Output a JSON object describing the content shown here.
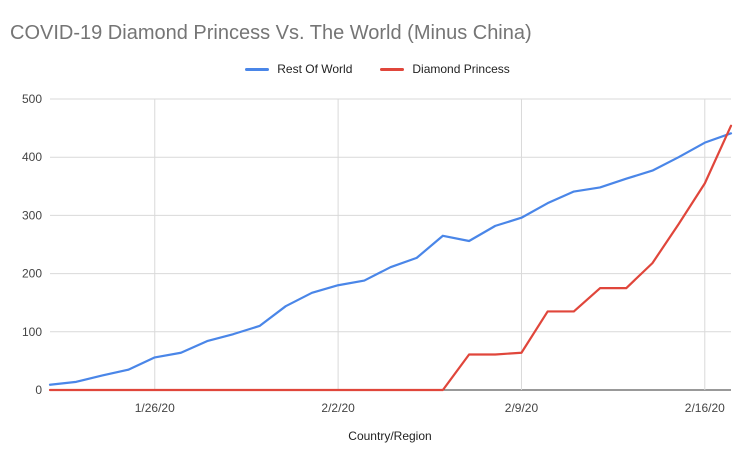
{
  "chart_data": {
    "type": "line",
    "title": "COVID-19 Diamond Princess Vs. The World (Minus China)",
    "xlabel": "Country/Region",
    "ylabel": "",
    "ylim": [
      0,
      500
    ],
    "yticks": [
      0,
      100,
      200,
      300,
      400,
      500
    ],
    "x": [
      "1/22/20",
      "1/23/20",
      "1/24/20",
      "1/25/20",
      "1/26/20",
      "1/27/20",
      "1/28/20",
      "1/29/20",
      "1/30/20",
      "1/31/20",
      "2/1/20",
      "2/2/20",
      "2/3/20",
      "2/4/20",
      "2/5/20",
      "2/6/20",
      "2/7/20",
      "2/8/20",
      "2/9/20",
      "2/10/20",
      "2/11/20",
      "2/12/20",
      "2/13/20",
      "2/14/20",
      "2/15/20",
      "2/16/20",
      "2/17/20"
    ],
    "xtick_labels": [
      "1/26/20",
      "2/2/20",
      "2/9/20",
      "2/16/20"
    ],
    "grid": true,
    "legend_position": "top",
    "series": [
      {
        "name": "Rest Of World",
        "color": "#4a86e8",
        "values": [
          9,
          14,
          25,
          35,
          56,
          64,
          84,
          96,
          110,
          144,
          167,
          180,
          188,
          211,
          227,
          265,
          256,
          282,
          296,
          321,
          341,
          348,
          363,
          377,
          400,
          425,
          441
        ]
      },
      {
        "name": "Diamond Princess",
        "color": "#e0463b",
        "values": [
          0,
          0,
          0,
          0,
          0,
          0,
          0,
          0,
          0,
          0,
          0,
          0,
          0,
          0,
          0,
          0,
          61,
          61,
          64,
          135,
          135,
          175,
          175,
          218,
          285,
          355,
          454
        ]
      }
    ]
  }
}
